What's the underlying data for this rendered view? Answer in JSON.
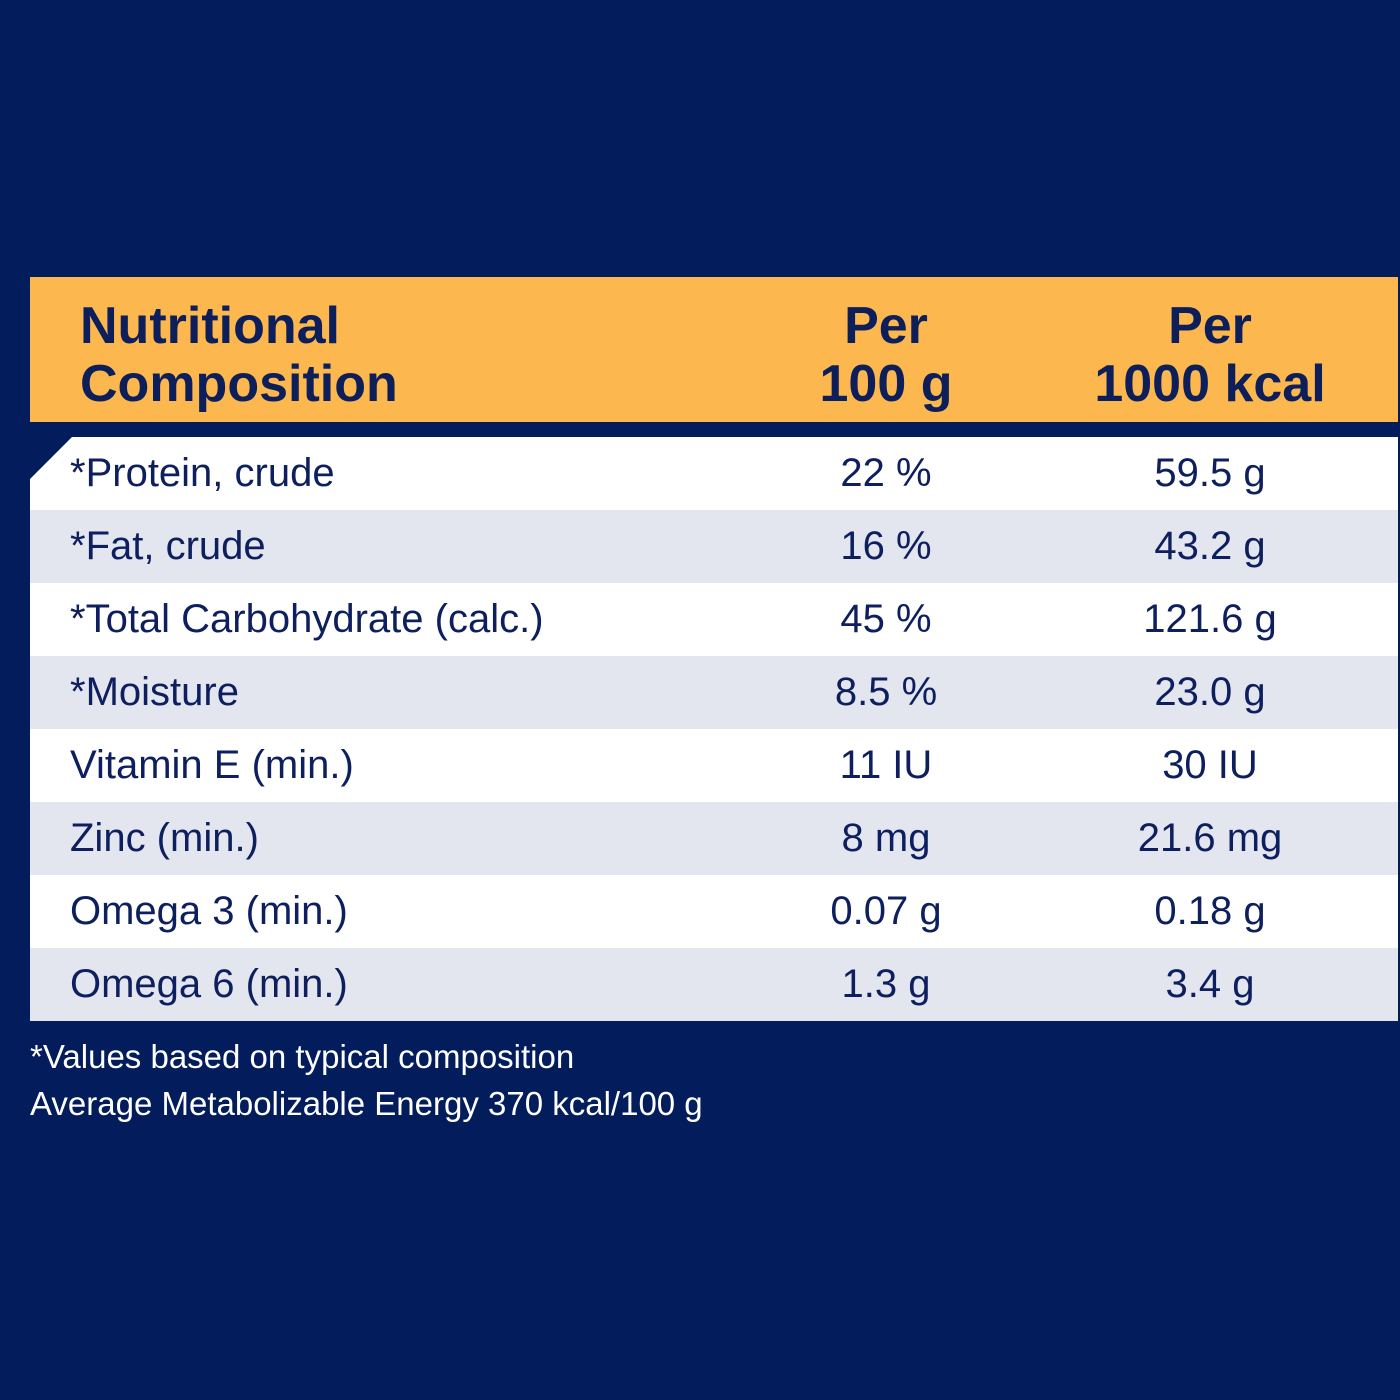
{
  "header": {
    "name_line1": "Nutritional",
    "name_line2": "Composition",
    "per100_line1": "Per",
    "per100_line2": "100 g",
    "per1000_line1": "Per",
    "per1000_line2": "1000 kcal"
  },
  "rows": [
    {
      "name": "*Protein, crude",
      "per100": "22 %",
      "per1000": "59.5 g"
    },
    {
      "name": "*Fat, crude",
      "per100": "16 %",
      "per1000": "43.2 g"
    },
    {
      "name": "*Total Carbohydrate (calc.)",
      "per100": "45 %",
      "per1000": "121.6 g"
    },
    {
      "name": "*Moisture",
      "per100": "8.5 %",
      "per1000": "23.0 g"
    },
    {
      "name": "Vitamin E (min.)",
      "per100": "11 IU",
      "per1000": "30 IU"
    },
    {
      "name": "Zinc (min.)",
      "per100": "8 mg",
      "per1000": "21.6 mg"
    },
    {
      "name": "Omega 3 (min.)",
      "per100": "0.07 g",
      "per1000": "0.18 g"
    },
    {
      "name": "Omega 6 (min.)",
      "per100": "1.3 g",
      "per1000": "3.4 g"
    }
  ],
  "footnotes": {
    "line1": "*Values based on typical composition",
    "line2": "Average Metabolizable Energy 370 kcal/100 g"
  },
  "colors": {
    "background": "#031c5b",
    "header": "#fdb74f",
    "row_odd": "#ffffff",
    "row_even": "#e3e5ef",
    "text_dark": "#0d1f5e"
  }
}
